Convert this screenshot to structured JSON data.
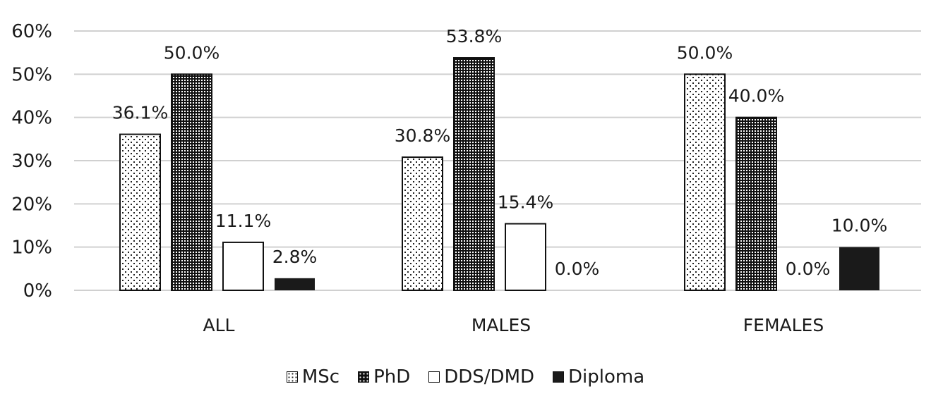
{
  "chart_data": {
    "type": "bar",
    "title": "",
    "xlabel": "",
    "ylabel": "",
    "categories": [
      "ALL",
      "MALES",
      "FEMALES"
    ],
    "series": [
      {
        "name": "MSc",
        "values": [
          36.1,
          30.8,
          50.0
        ],
        "labels": [
          "36.1%",
          "30.8%",
          "50.0%"
        ],
        "pattern": "dots"
      },
      {
        "name": "PhD",
        "values": [
          50.0,
          53.8,
          40.0
        ],
        "labels": [
          "50.0%",
          "53.8%",
          "40.0%"
        ],
        "pattern": "checker"
      },
      {
        "name": "DDS/DMD",
        "values": [
          11.1,
          15.4,
          0.0
        ],
        "labels": [
          "11.1%",
          "15.4%",
          "0.0%"
        ],
        "pattern": "white"
      },
      {
        "name": "Diploma",
        "values": [
          2.8,
          0.0,
          10.0
        ],
        "labels": [
          "2.8%",
          "0.0%",
          "10.0%"
        ],
        "pattern": "black"
      }
    ],
    "yticks": [
      "0%",
      "10%",
      "20%",
      "30%",
      "40%",
      "50%",
      "60%"
    ],
    "ylim": [
      0,
      60
    ],
    "grid": true,
    "legend_position": "bottom"
  },
  "legend": {
    "items": [
      {
        "label": "MSc",
        "icon": "dotted-swatch-icon"
      },
      {
        "label": "PhD",
        "icon": "checker-swatch-icon"
      },
      {
        "label": "DDS/DMD",
        "icon": "white-swatch-icon"
      },
      {
        "label": "Diploma",
        "icon": "black-swatch-icon"
      }
    ]
  }
}
